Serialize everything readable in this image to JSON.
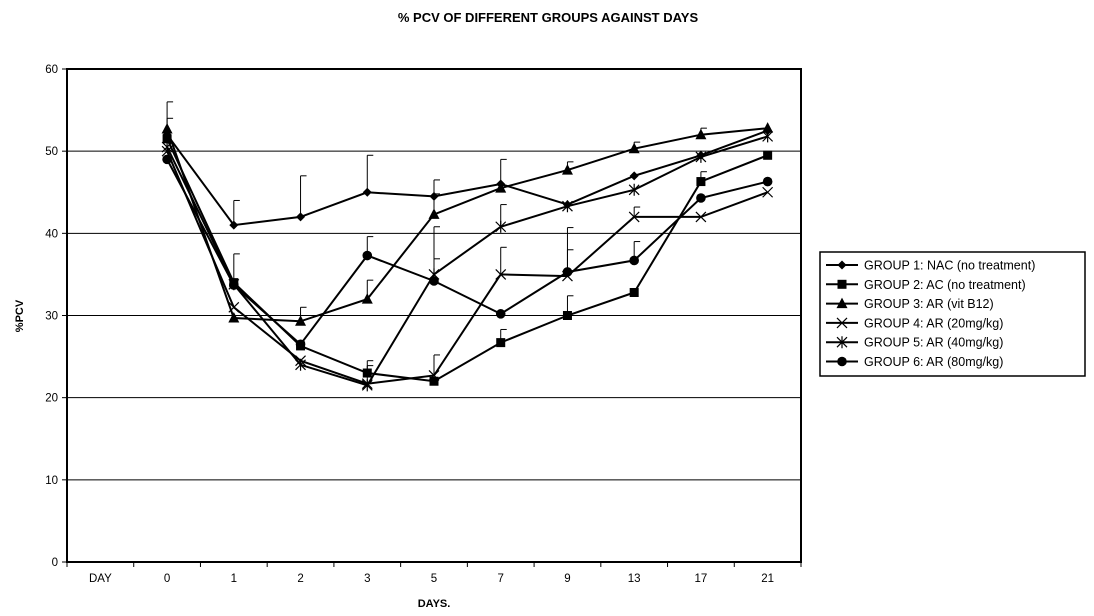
{
  "chart_data": {
    "type": "line",
    "title": "% PCV OF DIFFERENT GROUPS AGAINST DAYS",
    "xlabel": "DAYS.",
    "ylabel": "%PCV",
    "categories": [
      "DAY",
      "0",
      "1",
      "2",
      "3",
      "5",
      "7",
      "9",
      "13",
      "17",
      "21"
    ],
    "ylim": [
      0,
      60
    ],
    "yticks": [
      0,
      10,
      20,
      30,
      40,
      50,
      60
    ],
    "grid": true,
    "legend_position": "right",
    "series": [
      {
        "name": "GROUP 1: NAC (no treatment)",
        "marker": "diamond",
        "values": [
          null,
          52,
          41,
          42,
          45,
          44.5,
          46,
          43.5,
          47,
          49.5,
          52.5
        ],
        "error": [
          null,
          4,
          3,
          5,
          4.5,
          2,
          3,
          0,
          0,
          0,
          0
        ]
      },
      {
        "name": "GROUP 2: AC (no treatment)",
        "marker": "square",
        "values": [
          null,
          51.5,
          34,
          26.3,
          23,
          22,
          26.7,
          30,
          32.8,
          46.3,
          49.5
        ],
        "error": [
          null,
          0,
          0,
          0,
          1.5,
          0,
          1.6,
          2.4,
          0,
          1.2,
          0
        ]
      },
      {
        "name": "GROUP 3: AR (vit B12)",
        "marker": "triangle",
        "values": [
          null,
          52.7,
          29.7,
          29.3,
          32,
          42.3,
          45.5,
          47.7,
          50.3,
          52,
          52.8
        ],
        "error": [
          null,
          1.3,
          0,
          1.7,
          2.3,
          2.5,
          0,
          1,
          0.8,
          0.8,
          0
        ]
      },
      {
        "name": "GROUP 4: AR (20mg/kg)",
        "marker": "x",
        "values": [
          null,
          50,
          31,
          24.5,
          21.7,
          22.7,
          35,
          34.8,
          42,
          42,
          45
        ],
        "error": [
          null,
          0,
          0,
          0,
          2.2,
          2.5,
          3.3,
          3.2,
          1.2,
          0,
          0
        ]
      },
      {
        "name": "GROUP 5: AR (40mg/kg)",
        "marker": "star",
        "values": [
          null,
          50.5,
          33.8,
          24,
          21.5,
          35,
          40.8,
          43.3,
          45.3,
          49.3,
          51.8
        ],
        "error": [
          null,
          0,
          0,
          0,
          0,
          5.8,
          2.7,
          0,
          0,
          0,
          0
        ]
      },
      {
        "name": "GROUP 6: AR (80mg/kg)",
        "marker": "circle",
        "values": [
          null,
          49,
          33.7,
          26.5,
          37.3,
          34.2,
          30.2,
          35.3,
          36.7,
          44.3,
          46.3
        ],
        "error": [
          null,
          0,
          3.8,
          0,
          2.3,
          2.7,
          0,
          5.4,
          2.3,
          0,
          0
        ]
      }
    ]
  }
}
